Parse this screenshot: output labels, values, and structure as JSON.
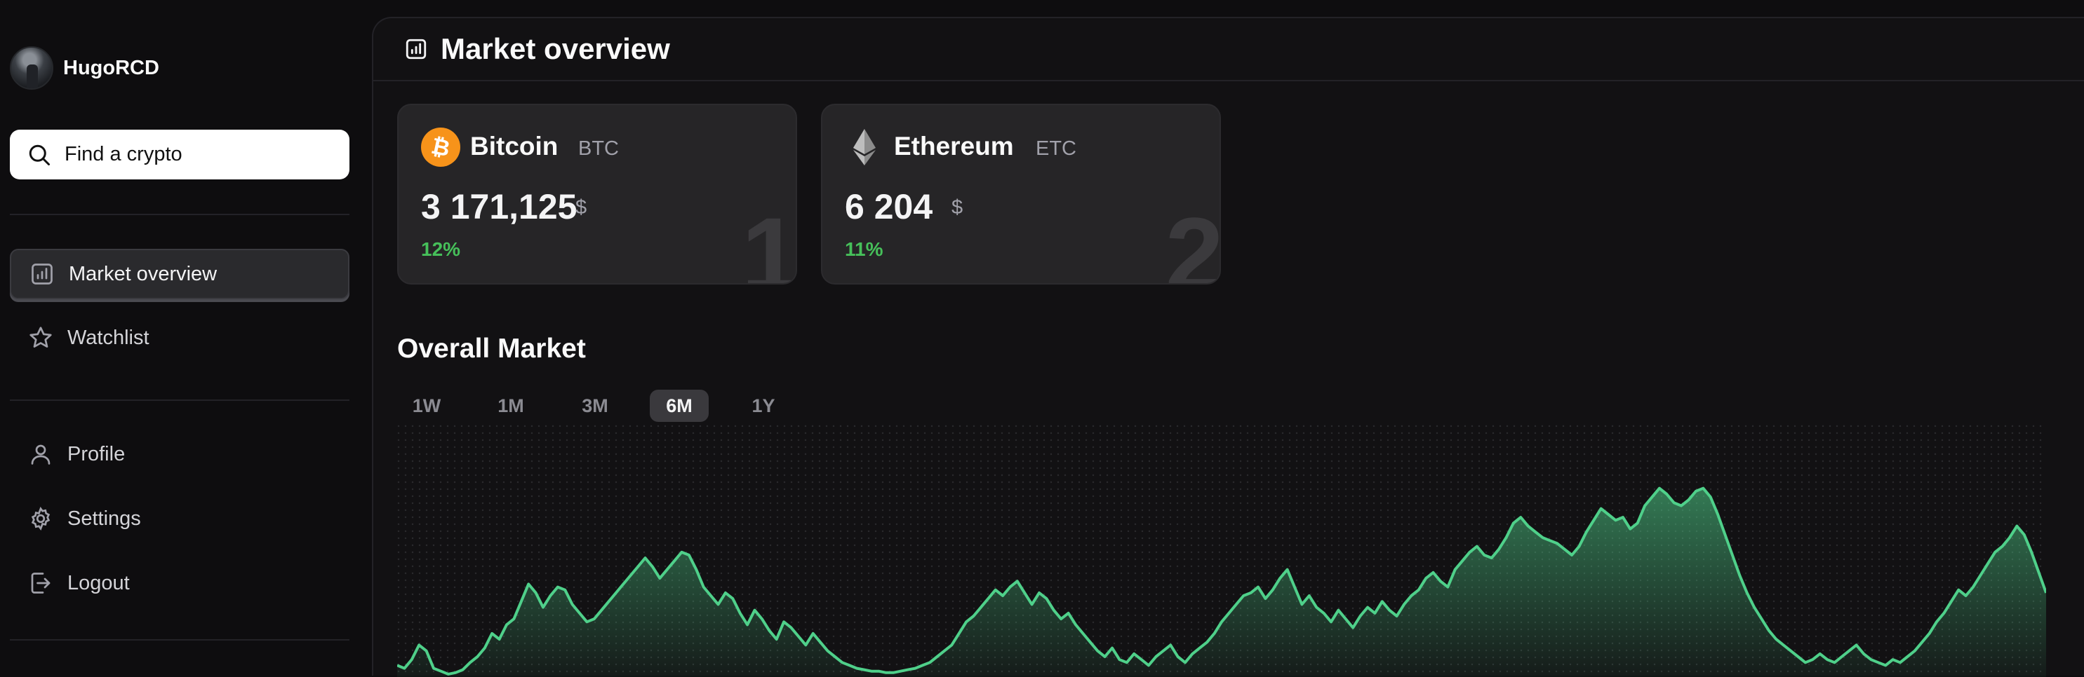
{
  "user": {
    "name": "HugoRCD"
  },
  "search": {
    "placeholder": "Find a crypto"
  },
  "nav": {
    "primary": [
      {
        "label": "Market overview",
        "icon": "chart-icon",
        "active": true
      },
      {
        "label": "Watchlist",
        "icon": "star-icon",
        "active": false
      }
    ],
    "secondary": [
      {
        "label": "Profile",
        "icon": "user-icon"
      },
      {
        "label": "Settings",
        "icon": "gear-icon"
      },
      {
        "label": "Logout",
        "icon": "logout-icon"
      }
    ]
  },
  "header": {
    "title": "Market overview",
    "icon": "chart-icon"
  },
  "cards": [
    {
      "name": "Bitcoin",
      "ticker": "BTC",
      "price": "3 171,125",
      "currency": "$",
      "change": "12%",
      "rank": "1",
      "icon": "bitcoin-icon",
      "icon_color": "#f7931a"
    },
    {
      "name": "Ethereum",
      "ticker": "ETC",
      "price": "6 204",
      "currency": "$",
      "change": "11%",
      "rank": "2",
      "icon": "ethereum-icon",
      "icon_color": "#8c8c8c"
    }
  ],
  "market": {
    "title": "Overall Market",
    "ranges": [
      "1W",
      "1M",
      "3M",
      "6M",
      "1Y"
    ],
    "active_range": "6M"
  },
  "colors": {
    "accent_green": "#46c05a",
    "chart_line": "#4fd08a",
    "background": "#0e0d0f"
  },
  "chart_data": {
    "type": "area",
    "series": [
      {
        "values": [
          8,
          6,
          12,
          22,
          18,
          6,
          4,
          2,
          3,
          5,
          10,
          14,
          20,
          30,
          26,
          36,
          40,
          52,
          64,
          58,
          48,
          56,
          62,
          60,
          50,
          44,
          38,
          40,
          46,
          52,
          58,
          64,
          70,
          76,
          82,
          76,
          68,
          74,
          80,
          86,
          84,
          74,
          62,
          56,
          50,
          58,
          54,
          44,
          36,
          46,
          40,
          32,
          26,
          38,
          34,
          28,
          22,
          30,
          24,
          18,
          14,
          10,
          8,
          6,
          5,
          4,
          4,
          3,
          3,
          4,
          5,
          6,
          8,
          10,
          14,
          18,
          22,
          30,
          38,
          42,
          48,
          54,
          60,
          56,
          62,
          66,
          58,
          50,
          58,
          54,
          46,
          40,
          44,
          36,
          30,
          24,
          18,
          14,
          20,
          12,
          10,
          16,
          12,
          8,
          14,
          18,
          22,
          14,
          10,
          16,
          20,
          24,
          30,
          38,
          44,
          50,
          56,
          58,
          62,
          54,
          60,
          68,
          74,
          62,
          50,
          56,
          48,
          44,
          38,
          46,
          40,
          34,
          42,
          48,
          44,
          52,
          46,
          42,
          50,
          56,
          60,
          68,
          72,
          66,
          62,
          74,
          80,
          86,
          90,
          84,
          82,
          88,
          96,
          106,
          110,
          104,
          100,
          96,
          94,
          92,
          88,
          84,
          90,
          100,
          108,
          116,
          112,
          108,
          110,
          102,
          106,
          118,
          124,
          130,
          126,
          120,
          118,
          122,
          128,
          130,
          124,
          112,
          98,
          84,
          70,
          58,
          48,
          40,
          32,
          26,
          22,
          18,
          14,
          10,
          12,
          16,
          12,
          10,
          14,
          18,
          22,
          16,
          12,
          10,
          8,
          12,
          10,
          14,
          18,
          24,
          30,
          38,
          44,
          52,
          60,
          56,
          62,
          70,
          78,
          86,
          90,
          96,
          104,
          98,
          86,
          72,
          58
        ]
      }
    ],
    "ylim": [
      0,
      140
    ],
    "grid": false
  }
}
